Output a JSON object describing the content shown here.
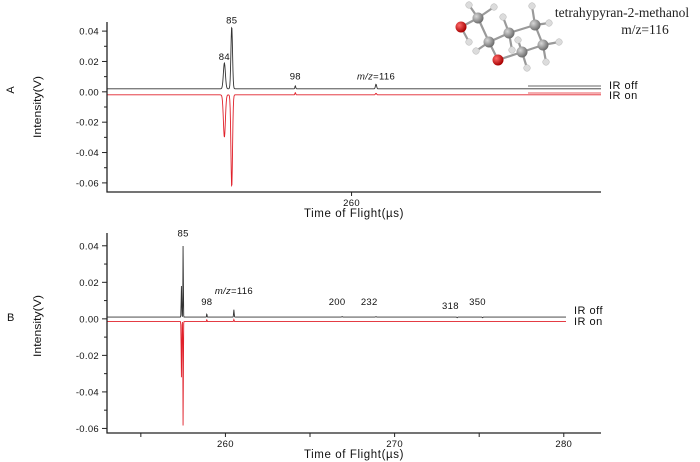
{
  "figure": {
    "molecule": {
      "name": "tetrahypyran-2-methanol",
      "mz_label": "m/z=116",
      "colors": {
        "carbon": "#8a8a8a",
        "oxygen": "#cc1111",
        "hydrogen": "#dcdcdc",
        "bond": "#9a9a9a"
      }
    },
    "legend": {
      "off_label": "IR off",
      "on_label": "IR on",
      "off_color": "#333333",
      "on_color": "#e0202a"
    }
  },
  "chart_data": [
    {
      "panel": "A",
      "type": "line",
      "title": "",
      "xlabel": "Time of Flight(µs)",
      "ylabel": "Intensity(V)",
      "xlim": [
        255.0,
        265.1
      ],
      "ylim": [
        -0.066,
        0.046
      ],
      "xticks": [
        260
      ],
      "xtick_labels": [
        "260"
      ],
      "yticks": [
        0.04,
        0.02,
        0.0,
        -0.02,
        -0.04,
        -0.06
      ],
      "ytick_labels": [
        "0.04",
        "0.02",
        "0.00",
        "-0.02",
        "-0.04",
        "-0.06"
      ],
      "grid": false,
      "legend": [
        "IR off",
        "IR on"
      ],
      "legend_position": "right",
      "annotations": [
        {
          "text": "84",
          "x": 257.4,
          "y": 0.021,
          "italic_prefix": ""
        },
        {
          "text": "85",
          "x": 257.55,
          "y": 0.045,
          "italic_prefix": ""
        },
        {
          "text": "98",
          "x": 258.85,
          "y": 0.008,
          "italic_prefix": ""
        },
        {
          "text": "=116",
          "x": 260.5,
          "y": 0.008,
          "italic_prefix": "m/z"
        }
      ],
      "series": [
        {
          "name": "IR off",
          "color": "#333333",
          "baseline": 0.002,
          "peaks": [
            {
              "x": 257.4,
              "y": 0.019,
              "width": 0.05
            },
            {
              "x": 257.55,
              "y": 0.043,
              "width": 0.04
            },
            {
              "x": 258.85,
              "y": 0.004,
              "width": 0.02
            },
            {
              "x": 260.5,
              "y": 0.005,
              "width": 0.03
            }
          ]
        },
        {
          "name": "IR on",
          "color": "#e0202a",
          "baseline": -0.002,
          "peaks": [
            {
              "x": 257.4,
              "y": -0.03,
              "width": 0.05
            },
            {
              "x": 257.55,
              "y": -0.063,
              "width": 0.04
            },
            {
              "x": 258.85,
              "y": -0.0005,
              "width": 0.02
            },
            {
              "x": 260.5,
              "y": -0.001,
              "width": 0.03
            }
          ]
        }
      ]
    },
    {
      "panel": "B",
      "type": "line",
      "title": "",
      "xlabel": "Time of Flight(µs)",
      "ylabel": "Intensity(V)",
      "xlim": [
        253.0,
        282.2
      ],
      "ylim": [
        -0.0625,
        0.047
      ],
      "xticks": [
        255,
        260,
        265,
        270,
        275,
        280
      ],
      "xtick_labels": [
        "",
        "260",
        "",
        "270",
        "",
        "280"
      ],
      "yticks": [
        0.04,
        0.02,
        0.0,
        -0.02,
        -0.04,
        -0.06
      ],
      "ytick_labels": [
        "0.04",
        "0.02",
        "0.00",
        "-0.02",
        "-0.04",
        "-0.06"
      ],
      "grid": false,
      "legend": [
        "IR off",
        "IR on"
      ],
      "legend_position": "right",
      "annotations": [
        {
          "text": "85",
          "x": 257.5,
          "y": 0.045,
          "italic_prefix": ""
        },
        {
          "text": "98",
          "x": 258.9,
          "y": 0.0075,
          "italic_prefix": ""
        },
        {
          "text": "=116",
          "x": 260.5,
          "y": 0.0135,
          "italic_prefix": "m/z"
        },
        {
          "text": "200",
          "x": 266.6,
          "y": 0.0075,
          "italic_prefix": ""
        },
        {
          "text": "232",
          "x": 268.5,
          "y": 0.0075,
          "italic_prefix": ""
        },
        {
          "text": "318",
          "x": 273.3,
          "y": 0.0055,
          "italic_prefix": ""
        },
        {
          "text": "350",
          "x": 274.9,
          "y": 0.0075,
          "italic_prefix": ""
        }
      ],
      "series": [
        {
          "name": "IR off",
          "color": "#333333",
          "baseline": 0.001,
          "peaks": [
            {
              "x": 257.4,
              "y": 0.018,
              "width": 0.04
            },
            {
              "x": 257.5,
              "y": 0.042,
              "width": 0.03
            },
            {
              "x": 258.9,
              "y": 0.003,
              "width": 0.03
            },
            {
              "x": 260.5,
              "y": 0.005,
              "width": 0.04
            },
            {
              "x": 266.9,
              "y": 0.0012,
              "width": 0.05
            },
            {
              "x": 268.9,
              "y": 0.0012,
              "width": 0.05
            },
            {
              "x": 273.7,
              "y": 0.0006,
              "width": 0.05
            },
            {
              "x": 275.2,
              "y": 0.0006,
              "width": 0.05
            }
          ]
        },
        {
          "name": "IR on",
          "color": "#e0202a",
          "baseline": -0.0015,
          "peaks": [
            {
              "x": 257.4,
              "y": -0.032,
              "width": 0.04
            },
            {
              "x": 257.5,
              "y": -0.0615,
              "width": 0.03
            },
            {
              "x": 258.9,
              "y": -0.0003,
              "width": 0.03
            },
            {
              "x": 260.5,
              "y": -0.0004,
              "width": 0.04
            }
          ]
        }
      ]
    }
  ]
}
